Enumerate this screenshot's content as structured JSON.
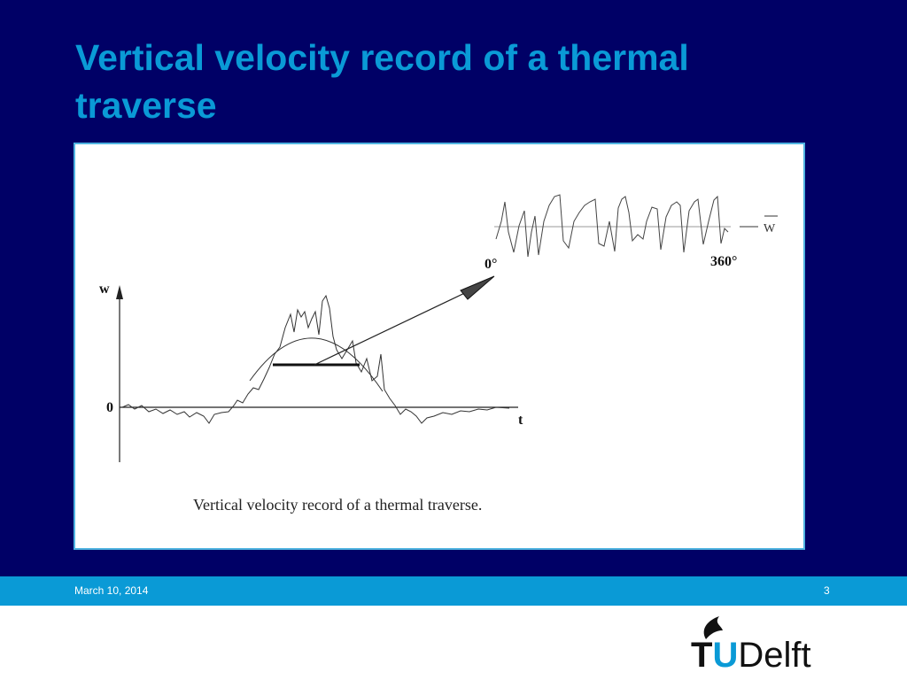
{
  "slide": {
    "title": "Vertical velocity record of a thermal traverse",
    "figure": {
      "labels": {
        "w_axis": "w",
        "zero": "0",
        "t_axis": "t",
        "start_angle": "0°",
        "end_angle": "360°",
        "mean": "W"
      },
      "caption": "Vertical velocity record of a thermal traverse."
    },
    "footer": {
      "date": "March 10, 2014",
      "page": "3"
    },
    "logo": {
      "t": "T",
      "u": "U",
      "delft": "Delft"
    }
  }
}
